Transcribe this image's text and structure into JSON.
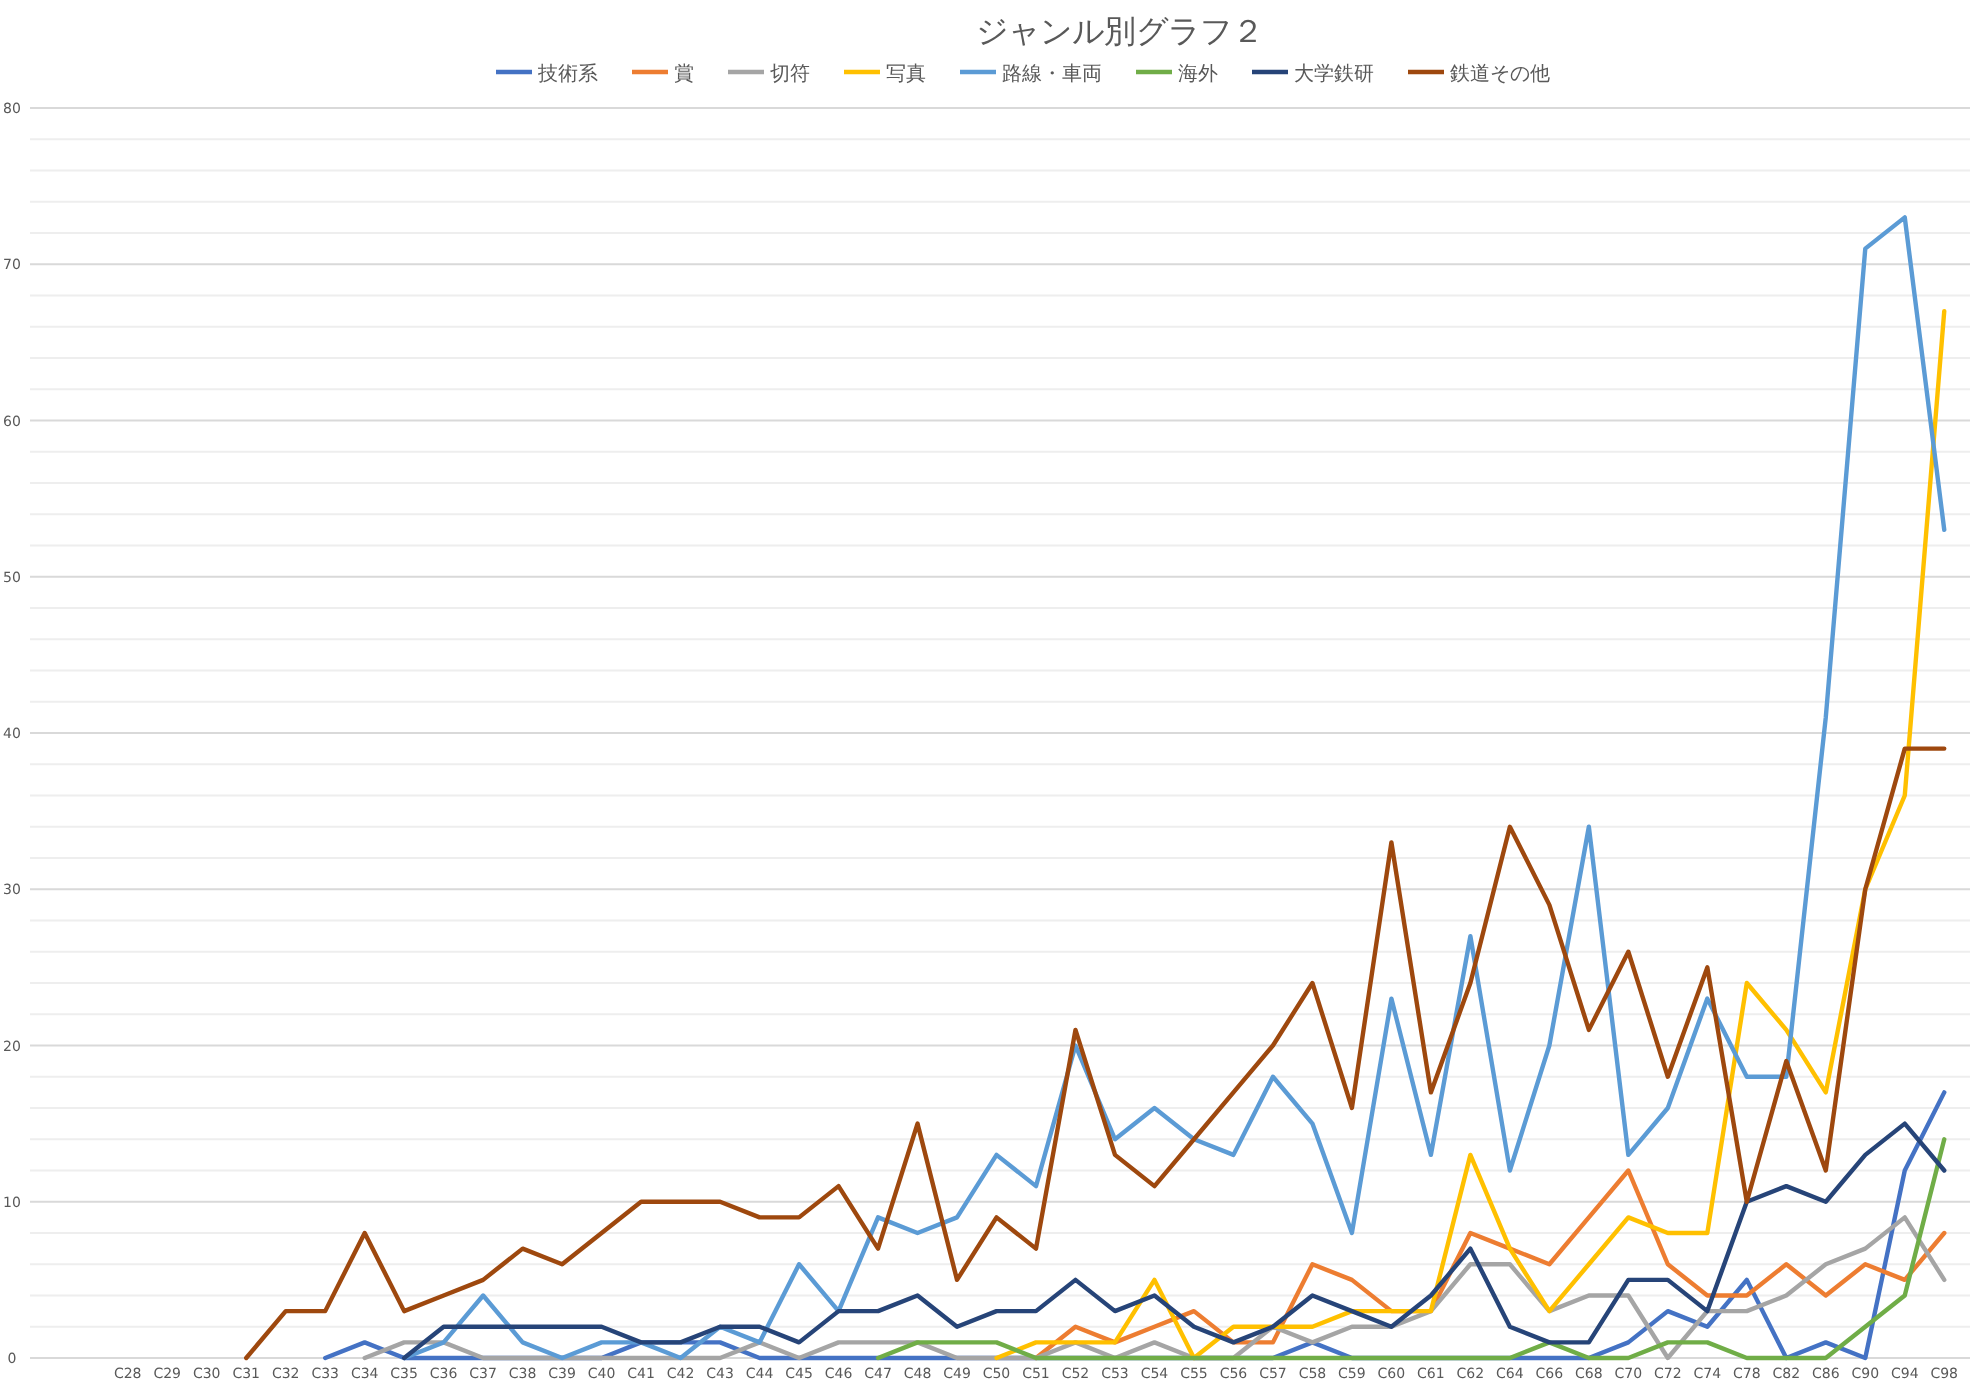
{
  "chart_data": {
    "type": "line",
    "title": "ジャンル別グラフ２",
    "categories": [
      "C28",
      "C29",
      "C30",
      "C31",
      "C32",
      "C33",
      "C34",
      "C35",
      "C36",
      "C37",
      "C38",
      "C39",
      "C40",
      "C41",
      "C42",
      "C43",
      "C44",
      "C45",
      "C46",
      "C47",
      "C48",
      "C49",
      "C50",
      "C51",
      "C52",
      "C53",
      "C54",
      "C55",
      "C56",
      "C57",
      "C58",
      "C59",
      "C60",
      "C61",
      "C62",
      "C64",
      "C66",
      "C68",
      "C70",
      "C72",
      "C74",
      "C78",
      "C82",
      "C86",
      "C90",
      "C94",
      "C98"
    ],
    "series": [
      {
        "name": "技術系",
        "color": "#4472c4",
        "values": [
          null,
          null,
          null,
          null,
          null,
          0,
          1,
          0,
          0,
          0,
          0,
          0,
          0,
          1,
          1,
          1,
          0,
          0,
          0,
          0,
          0,
          0,
          0,
          0,
          0,
          0,
          0,
          0,
          0,
          0,
          1,
          0,
          0,
          0,
          0,
          0,
          0,
          0,
          1,
          3,
          2,
          5,
          0,
          1,
          0,
          12,
          17
        ]
      },
      {
        "name": "賞",
        "color": "#ed7d31",
        "values": [
          null,
          null,
          null,
          null,
          null,
          null,
          null,
          null,
          null,
          null,
          null,
          null,
          null,
          null,
          null,
          null,
          null,
          null,
          null,
          null,
          null,
          null,
          null,
          0,
          2,
          1,
          2,
          3,
          1,
          1,
          6,
          5,
          3,
          3,
          8,
          7,
          6,
          9,
          12,
          6,
          4,
          4,
          6,
          4,
          6,
          5,
          8
        ]
      },
      {
        "name": "切符",
        "color": "#a5a5a5",
        "values": [
          null,
          null,
          null,
          null,
          null,
          null,
          0,
          1,
          1,
          0,
          0,
          0,
          0,
          0,
          0,
          0,
          1,
          0,
          1,
          1,
          1,
          0,
          0,
          0,
          1,
          0,
          1,
          0,
          0,
          2,
          1,
          2,
          2,
          3,
          6,
          6,
          3,
          4,
          4,
          0,
          3,
          3,
          4,
          6,
          7,
          9,
          5
        ]
      },
      {
        "name": "写真",
        "color": "#ffc000",
        "values": [
          null,
          null,
          null,
          null,
          null,
          null,
          null,
          null,
          null,
          null,
          null,
          null,
          null,
          null,
          null,
          null,
          null,
          null,
          null,
          null,
          null,
          null,
          0,
          1,
          1,
          1,
          5,
          0,
          2,
          2,
          2,
          3,
          3,
          3,
          13,
          7,
          3,
          6,
          9,
          8,
          8,
          24,
          21,
          17,
          30,
          36,
          67
        ]
      },
      {
        "name": "路線・車両",
        "color": "#5b9bd5",
        "values": [
          null,
          null,
          null,
          null,
          null,
          null,
          null,
          0,
          1,
          4,
          1,
          0,
          1,
          1,
          0,
          2,
          1,
          6,
          3,
          9,
          8,
          9,
          13,
          11,
          20,
          14,
          16,
          14,
          13,
          18,
          15,
          8,
          23,
          13,
          27,
          12,
          20,
          34,
          13,
          16,
          23,
          18,
          18,
          41,
          71,
          73,
          53
        ]
      },
      {
        "name": "海外",
        "color": "#70ad47",
        "values": [
          null,
          null,
          null,
          null,
          null,
          null,
          null,
          null,
          null,
          null,
          null,
          null,
          null,
          null,
          null,
          null,
          null,
          null,
          null,
          0,
          1,
          1,
          1,
          0,
          0,
          0,
          0,
          0,
          0,
          0,
          0,
          0,
          0,
          0,
          0,
          0,
          1,
          0,
          0,
          1,
          1,
          0,
          0,
          0,
          2,
          4,
          14
        ]
      },
      {
        "name": "大学鉄研",
        "color": "#264478",
        "values": [
          null,
          null,
          null,
          null,
          null,
          null,
          null,
          0,
          2,
          2,
          2,
          2,
          2,
          1,
          1,
          2,
          2,
          1,
          3,
          3,
          4,
          2,
          3,
          3,
          5,
          3,
          4,
          2,
          1,
          2,
          4,
          3,
          2,
          4,
          7,
          2,
          1,
          1,
          5,
          5,
          3,
          10,
          11,
          10,
          13,
          15,
          12
        ]
      },
      {
        "name": "鉄道その他",
        "color": "#9e480e",
        "values": [
          null,
          null,
          null,
          0,
          3,
          3,
          8,
          3,
          4,
          5,
          7,
          6,
          8,
          10,
          10,
          10,
          9,
          9,
          11,
          7,
          15,
          5,
          9,
          7,
          21,
          13,
          11,
          14,
          17,
          20,
          24,
          16,
          33,
          17,
          24,
          34,
          29,
          21,
          26,
          18,
          25,
          10,
          19,
          12,
          30,
          39,
          39
        ]
      }
    ],
    "ylim": [
      0,
      80
    ],
    "yticks": [
      0,
      10,
      20,
      30,
      40,
      50,
      60,
      70,
      80
    ],
    "grid": true,
    "legend": "top",
    "marker": "none",
    "line_style": "solid"
  }
}
